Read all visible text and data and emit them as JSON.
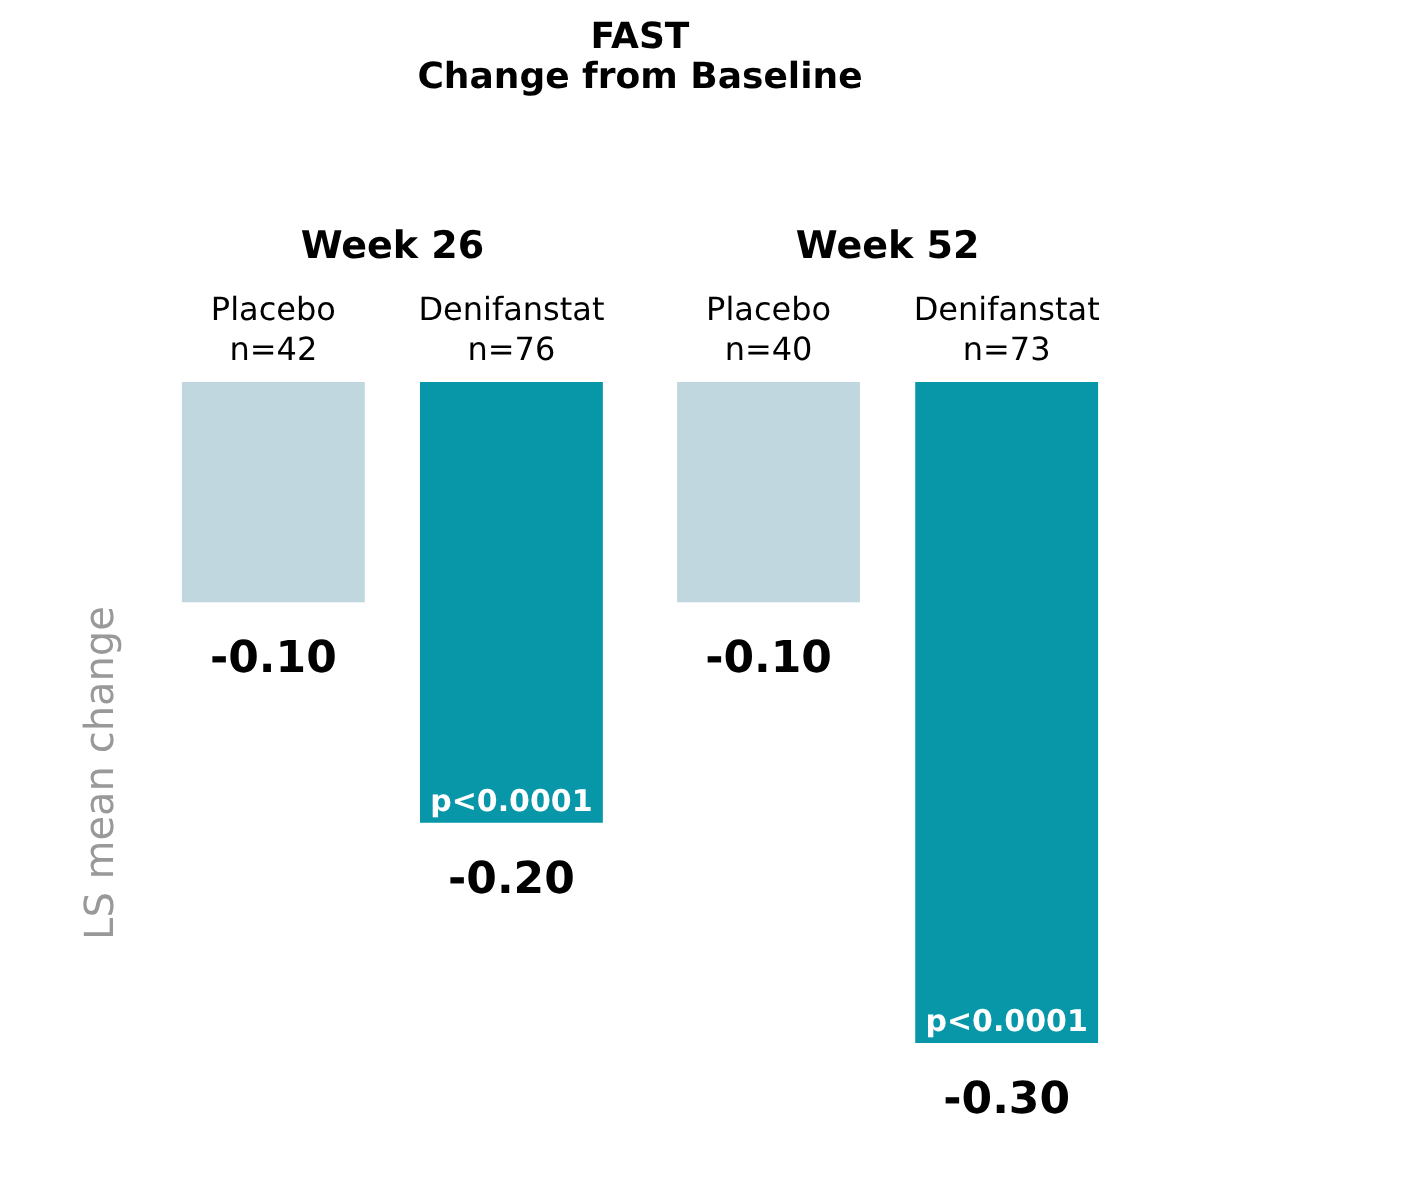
{
  "chart_data": {
    "type": "bar",
    "title": [
      "FAST",
      "Change from Baseline"
    ],
    "ylabel": "LS mean change",
    "categories": [
      "Placebo\nn=42",
      "Denifanstat\nn=76",
      "Placebo\nn=40",
      "Denifanstat\nn=73"
    ],
    "values": [
      -0.1,
      -0.2,
      -0.1,
      -0.3
    ],
    "colors": [
      "#c0d7df",
      "#0797a8",
      "#c0d7df",
      "#0797a8"
    ],
    "value_labels": [
      "-0.10",
      "-0.20",
      "-0.10",
      "-0.30"
    ],
    "annotations": [
      "Week 26",
      "Week 52",
      {
        "text": "p<0.0001",
        "x": "Denifanstat\nn=76",
        "y": -0.2
      },
      {
        "text": "p<0.0001",
        "x": "Denifanstat\nn=73",
        "y": -0.3
      }
    ],
    "grid": false
  }
}
